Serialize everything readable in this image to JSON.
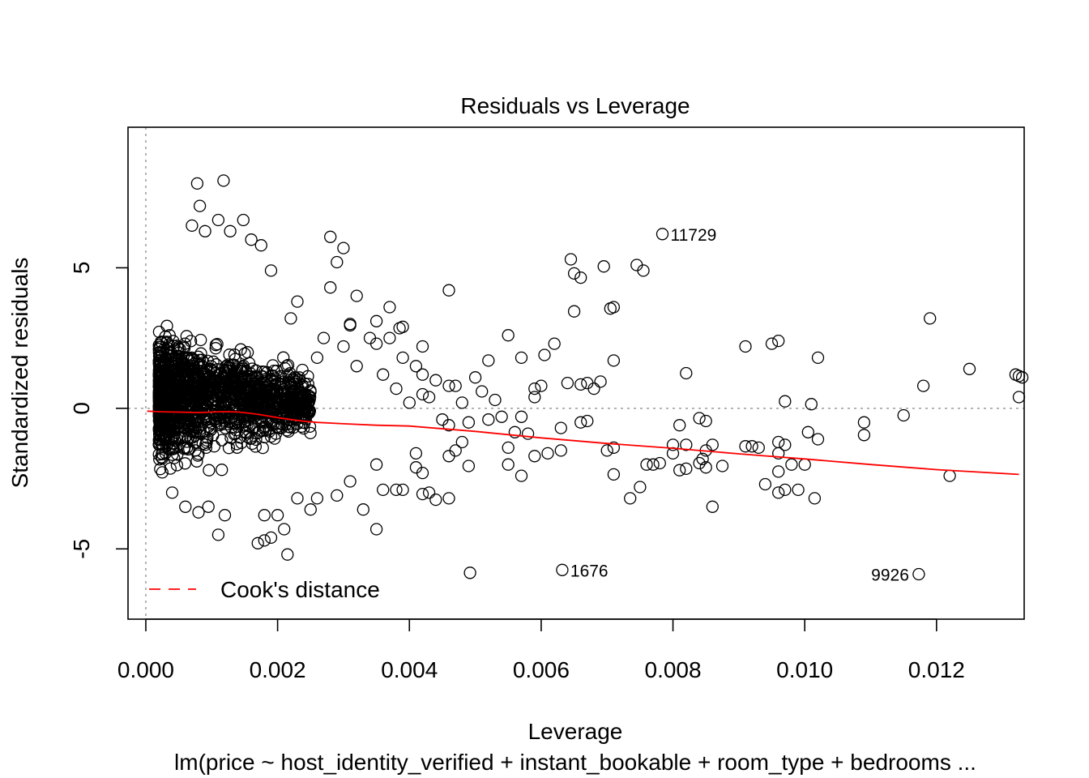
{
  "chart_data": {
    "type": "scatter",
    "title": "Residuals vs Leverage",
    "xlabel": "Leverage",
    "ylabel": "Standardized residuals",
    "subtitle": "lm(price ~ host_identity_verified + instant_bookable + room_type + bedrooms ...",
    "xlim": [
      -0.00027,
      0.01333
    ],
    "ylim": [
      -7.5,
      10
    ],
    "xticks": [
      0.0,
      0.002,
      0.004,
      0.006,
      0.008,
      0.01,
      0.012
    ],
    "xtick_labels": [
      "0.000",
      "0.002",
      "0.004",
      "0.006",
      "0.008",
      "0.010",
      "0.012"
    ],
    "yticks": [
      -5,
      0,
      5
    ],
    "ytick_labels": [
      "-5",
      "0",
      "5"
    ],
    "reference_lines": {
      "h": 0,
      "v": 0
    },
    "legend": {
      "position": "bottom-left",
      "entries": [
        {
          "label": "Cook's distance",
          "color": "#ff0000",
          "style": "dashed"
        }
      ]
    },
    "colors": {
      "points": "#000000",
      "smooth": "#ff0000",
      "reference": "#9a9a9a"
    },
    "smooth_line": {
      "x": [
        2e-05,
        0.0002,
        0.0004,
        0.0006,
        0.0008,
        0.001,
        0.0012,
        0.0014,
        0.0016,
        0.0018,
        0.002,
        0.0022,
        0.0024,
        0.0026,
        0.003,
        0.0035,
        0.004,
        0.005,
        0.006,
        0.007,
        0.008,
        0.009,
        0.01,
        0.011,
        0.012,
        0.01325
      ],
      "y": [
        -0.1,
        -0.12,
        -0.13,
        -0.14,
        -0.15,
        -0.13,
        -0.12,
        -0.13,
        -0.18,
        -0.25,
        -0.33,
        -0.4,
        -0.46,
        -0.5,
        -0.55,
        -0.6,
        -0.63,
        -0.82,
        -1.05,
        -1.25,
        -1.42,
        -1.62,
        -1.8,
        -2.0,
        -2.18,
        -2.35
      ]
    },
    "cluster": {
      "description": "dense cloud of observations at low leverage",
      "x_range": [
        0.0002,
        0.0025
      ],
      "y_range": [
        -5.2,
        8.2
      ]
    },
    "points": [
      {
        "x": 0.00078,
        "y": 8.0
      },
      {
        "x": 0.00118,
        "y": 8.1
      },
      {
        "x": 0.00082,
        "y": 7.2
      },
      {
        "x": 0.0011,
        "y": 6.7
      },
      {
        "x": 0.00148,
        "y": 6.7
      },
      {
        "x": 0.0007,
        "y": 6.5
      },
      {
        "x": 0.0016,
        "y": 6.0
      },
      {
        "x": 0.00175,
        "y": 5.8
      },
      {
        "x": 0.0009,
        "y": 6.3
      },
      {
        "x": 0.00128,
        "y": 6.3
      },
      {
        "x": 0.0028,
        "y": 6.1
      },
      {
        "x": 0.003,
        "y": 5.7
      },
      {
        "x": 0.0029,
        "y": 5.2
      },
      {
        "x": 0.0019,
        "y": 4.9
      },
      {
        "x": 0.0028,
        "y": 4.3
      },
      {
        "x": 0.0032,
        "y": 4.0
      },
      {
        "x": 0.0023,
        "y": 3.8
      },
      {
        "x": 0.0037,
        "y": 3.6
      },
      {
        "x": 0.0035,
        "y": 3.1
      },
      {
        "x": 0.0031,
        "y": 3.0
      },
      {
        "x": 0.0031,
        "y": 2.95
      },
      {
        "x": 0.0039,
        "y": 2.9
      },
      {
        "x": 0.00385,
        "y": 2.85
      },
      {
        "x": 0.0022,
        "y": 3.2
      },
      {
        "x": 0.0034,
        "y": 2.5
      },
      {
        "x": 0.0037,
        "y": 2.5
      },
      {
        "x": 0.0035,
        "y": 2.3
      },
      {
        "x": 0.0027,
        "y": 2.5
      },
      {
        "x": 0.003,
        "y": 2.2
      },
      {
        "x": 0.0026,
        "y": 1.8
      },
      {
        "x": 0.0032,
        "y": 1.5
      },
      {
        "x": 0.0036,
        "y": 1.2
      },
      {
        "x": 0.0039,
        "y": 1.8
      },
      {
        "x": 0.0042,
        "y": 2.2
      },
      {
        "x": 0.0041,
        "y": 1.5
      },
      {
        "x": 0.0042,
        "y": 1.2
      },
      {
        "x": 0.0044,
        "y": 1.0
      },
      {
        "x": 0.0038,
        "y": 0.7
      },
      {
        "x": 0.0042,
        "y": 0.5
      },
      {
        "x": 0.0043,
        "y": 0.4
      },
      {
        "x": 0.004,
        "y": 0.2
      },
      {
        "x": 0.0046,
        "y": 0.8
      },
      {
        "x": 0.0047,
        "y": 0.8
      },
      {
        "x": 0.0048,
        "y": 0.2
      },
      {
        "x": 0.0046,
        "y": 4.2
      },
      {
        "x": 0.005,
        "y": 1.1
      },
      {
        "x": 0.0052,
        "y": 1.7
      },
      {
        "x": 0.0051,
        "y": 0.6
      },
      {
        "x": 0.0053,
        "y": 0.3
      },
      {
        "x": 0.0055,
        "y": 2.6
      },
      {
        "x": 0.0057,
        "y": 1.8
      },
      {
        "x": 0.0059,
        "y": 0.7
      },
      {
        "x": 0.006,
        "y": 0.8
      },
      {
        "x": 0.0062,
        "y": 2.3
      },
      {
        "x": 0.0059,
        "y": 0.4
      },
      {
        "x": 0.00605,
        "y": 1.9
      },
      {
        "x": 0.0064,
        "y": 0.9
      },
      {
        "x": 0.00645,
        "y": 5.3
      },
      {
        "x": 0.0065,
        "y": 4.8
      },
      {
        "x": 0.0066,
        "y": 4.65
      },
      {
        "x": 0.0065,
        "y": 3.45
      },
      {
        "x": 0.0066,
        "y": 0.85
      },
      {
        "x": 0.0067,
        "y": 0.9
      },
      {
        "x": 0.0068,
        "y": 0.7
      },
      {
        "x": 0.0069,
        "y": 0.95
      },
      {
        "x": 0.00695,
        "y": 5.05
      },
      {
        "x": 0.00705,
        "y": 3.55
      },
      {
        "x": 0.0071,
        "y": 3.6
      },
      {
        "x": 0.0071,
        "y": 1.7
      },
      {
        "x": 0.00745,
        "y": 5.1
      },
      {
        "x": 0.00755,
        "y": 4.9
      },
      {
        "x": 0.0082,
        "y": 1.25
      },
      {
        "x": 0.0091,
        "y": 2.2
      },
      {
        "x": 0.0095,
        "y": 2.3
      },
      {
        "x": 0.0096,
        "y": 2.4
      },
      {
        "x": 0.0097,
        "y": 0.25
      },
      {
        "x": 0.0101,
        "y": 0.15
      },
      {
        "x": 0.01005,
        "y": -0.85
      },
      {
        "x": 0.0102,
        "y": 1.8
      },
      {
        "x": 0.0102,
        "y": -1.1
      },
      {
        "x": 0.0109,
        "y": -0.5
      },
      {
        "x": 0.0109,
        "y": -0.95
      },
      {
        "x": 0.0115,
        "y": -0.25
      },
      {
        "x": 0.0118,
        "y": 0.8
      },
      {
        "x": 0.0119,
        "y": 3.2
      },
      {
        "x": 0.0125,
        "y": 1.4
      },
      {
        "x": 0.0132,
        "y": 1.2
      },
      {
        "x": 0.01325,
        "y": 1.15
      },
      {
        "x": 0.0133,
        "y": 1.1
      },
      {
        "x": 0.01325,
        "y": 0.4
      },
      {
        "x": 0.0122,
        "y": -2.4
      },
      {
        "x": 0.0098,
        "y": -2.0
      },
      {
        "x": 0.01,
        "y": -2.0
      },
      {
        "x": 0.0094,
        "y": -2.7
      },
      {
        "x": 0.0096,
        "y": -3.0
      },
      {
        "x": 0.0097,
        "y": -2.9
      },
      {
        "x": 0.0099,
        "y": -2.9
      },
      {
        "x": 0.01015,
        "y": -3.2
      },
      {
        "x": 0.0096,
        "y": -2.25
      },
      {
        "x": 0.0096,
        "y": -1.6
      },
      {
        "x": 0.0097,
        "y": -1.3
      },
      {
        "x": 0.0096,
        "y": -1.2
      },
      {
        "x": 0.0091,
        "y": -1.35
      },
      {
        "x": 0.0092,
        "y": -1.35
      },
      {
        "x": 0.0093,
        "y": -1.4
      },
      {
        "x": 0.0086,
        "y": -3.5
      },
      {
        "x": 0.00875,
        "y": -2.05
      },
      {
        "x": 0.0085,
        "y": -2.1
      },
      {
        "x": 0.0084,
        "y": -1.95
      },
      {
        "x": 0.00845,
        "y": -1.8
      },
      {
        "x": 0.0085,
        "y": -1.5
      },
      {
        "x": 0.0086,
        "y": -1.3
      },
      {
        "x": 0.0084,
        "y": -0.35
      },
      {
        "x": 0.0085,
        "y": -0.45
      },
      {
        "x": 0.0081,
        "y": -2.2
      },
      {
        "x": 0.0082,
        "y": -2.15
      },
      {
        "x": 0.008,
        "y": -1.6
      },
      {
        "x": 0.008,
        "y": -1.3
      },
      {
        "x": 0.0082,
        "y": -1.3
      },
      {
        "x": 0.0081,
        "y": -0.6
      },
      {
        "x": 0.0078,
        "y": -1.95
      },
      {
        "x": 0.0077,
        "y": -2.0
      },
      {
        "x": 0.0076,
        "y": -2.0
      },
      {
        "x": 0.0075,
        "y": -2.8
      },
      {
        "x": 0.00735,
        "y": -3.2
      },
      {
        "x": 0.0071,
        "y": -2.35
      },
      {
        "x": 0.0071,
        "y": -1.4
      },
      {
        "x": 0.007,
        "y": -1.5
      },
      {
        "x": 0.0067,
        "y": -0.45
      },
      {
        "x": 0.0066,
        "y": -0.5
      },
      {
        "x": 0.0063,
        "y": -0.7
      },
      {
        "x": 0.0063,
        "y": -1.5
      },
      {
        "x": 0.0061,
        "y": -1.6
      },
      {
        "x": 0.0059,
        "y": -1.7
      },
      {
        "x": 0.0058,
        "y": -0.9
      },
      {
        "x": 0.0057,
        "y": -0.3
      },
      {
        "x": 0.0055,
        "y": -1.4
      },
      {
        "x": 0.0055,
        "y": -2.0
      },
      {
        "x": 0.0056,
        "y": -0.85
      },
      {
        "x": 0.0054,
        "y": -0.3
      },
      {
        "x": 0.0052,
        "y": -0.4
      },
      {
        "x": 0.0057,
        "y": -2.4
      },
      {
        "x": 0.0049,
        "y": -2.05
      },
      {
        "x": 0.0048,
        "y": -1.2
      },
      {
        "x": 0.0049,
        "y": -0.5
      },
      {
        "x": 0.0047,
        "y": -1.5
      },
      {
        "x": 0.0046,
        "y": -1.7
      },
      {
        "x": 0.0045,
        "y": -0.4
      },
      {
        "x": 0.0046,
        "y": -0.6
      },
      {
        "x": 0.0046,
        "y": -3.2
      },
      {
        "x": 0.0044,
        "y": -3.25
      },
      {
        "x": 0.0043,
        "y": -3.0
      },
      {
        "x": 0.0042,
        "y": -3.05
      },
      {
        "x": 0.0042,
        "y": -2.3
      },
      {
        "x": 0.0041,
        "y": -2.1
      },
      {
        "x": 0.0041,
        "y": -1.6
      },
      {
        "x": 0.0039,
        "y": -2.9
      },
      {
        "x": 0.0038,
        "y": -2.9
      },
      {
        "x": 0.0036,
        "y": -2.9
      },
      {
        "x": 0.0035,
        "y": -2.0
      },
      {
        "x": 0.0035,
        "y": -4.3
      },
      {
        "x": 0.0033,
        "y": -3.6
      },
      {
        "x": 0.0031,
        "y": -2.6
      },
      {
        "x": 0.0029,
        "y": -3.1
      },
      {
        "x": 0.0026,
        "y": -3.2
      },
      {
        "x": 0.0025,
        "y": -3.6
      },
      {
        "x": 0.0023,
        "y": -3.2
      },
      {
        "x": 0.0021,
        "y": -4.3
      },
      {
        "x": 0.002,
        "y": -3.8
      },
      {
        "x": 0.0018,
        "y": -3.8
      },
      {
        "x": 0.0019,
        "y": -4.6
      },
      {
        "x": 0.0018,
        "y": -4.7
      },
      {
        "x": 0.0017,
        "y": -4.8
      },
      {
        "x": 0.0011,
        "y": -4.5
      },
      {
        "x": 0.0012,
        "y": -3.8
      },
      {
        "x": 0.0008,
        "y": -3.7
      },
      {
        "x": 0.0006,
        "y": -3.5
      },
      {
        "x": 0.00095,
        "y": -3.5
      },
      {
        "x": 0.0004,
        "y": -3.0
      },
      {
        "x": 0.00215,
        "y": -5.2
      },
      {
        "x": 0.00492,
        "y": -5.85
      },
      {
        "x": 0.00632,
        "y": -5.75
      },
      {
        "x": 0.01173,
        "y": -5.9
      },
      {
        "x": 0.00784,
        "y": 6.2
      }
    ],
    "labeled_points": [
      {
        "label": "11729",
        "x": 0.00784,
        "y": 6.2,
        "side": "right"
      },
      {
        "label": "1676",
        "x": 0.00632,
        "y": -5.75,
        "side": "right"
      },
      {
        "label": "9926",
        "x": 0.01173,
        "y": -5.9,
        "side": "left"
      }
    ]
  }
}
